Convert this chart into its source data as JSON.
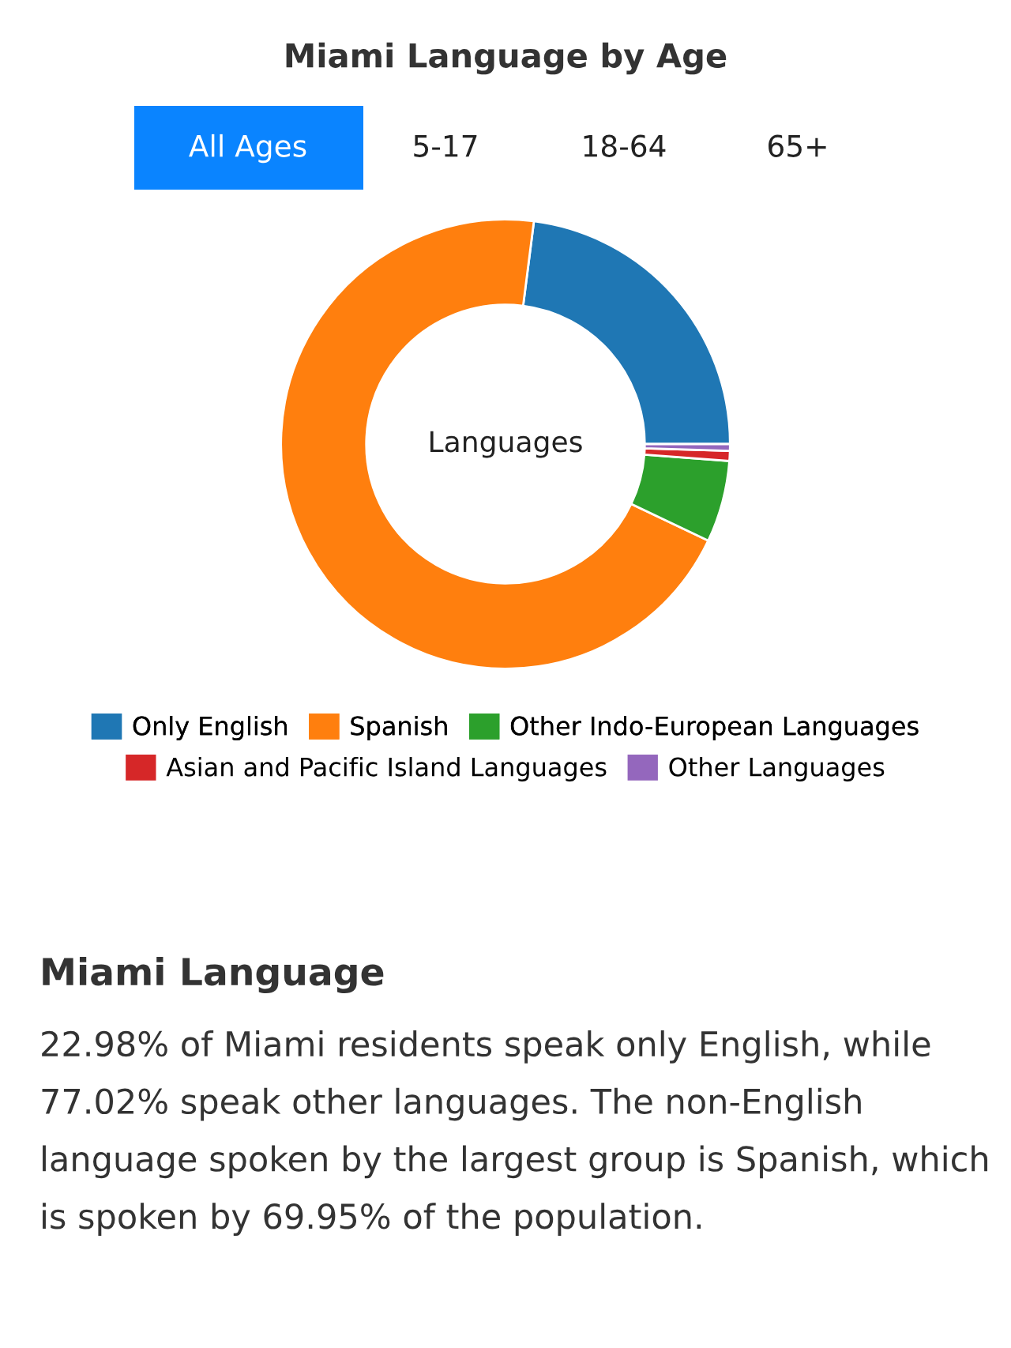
{
  "chart_data": {
    "type": "donut",
    "title": "Miami Language by Age",
    "categories": [
      "Only English",
      "Spanish",
      "Other Indo-European Languages",
      "Asian and Pacific Island Languages",
      "Other Languages"
    ],
    "values": [
      22.98,
      69.95,
      5.87,
      0.72,
      0.48
    ],
    "colors": [
      "#1f77b4",
      "#ff7f0e",
      "#2ca02c",
      "#d62728",
      "#9467bd"
    ],
    "legend": "bottom",
    "annotations": [
      "All Ages",
      "5-17",
      "18-64",
      "65+",
      "Languages",
      "Miami Language",
      "22.98% of Miami residents speak only English, while 77.02% speak other languages. The non-English language spoken by the largest group is Spanish, which is spoken by 69.95% of the population."
    ]
  }
}
